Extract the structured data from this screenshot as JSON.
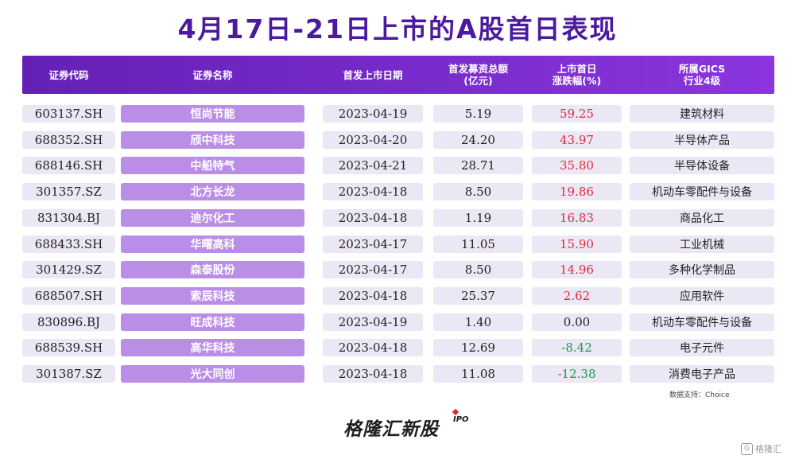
{
  "title": "4月17日-21日上市的A股首日表现",
  "headers": [
    "证券代码",
    "证券名称",
    "首发上市日期",
    "首发募资总额\n(亿元)",
    "上市首日\n涨跌幅(%)",
    "所属GICS\n行业4级"
  ],
  "rows": [
    {
      "code": "603137.SH",
      "name": "恒尚节能",
      "date": "2023-04-19",
      "amount": "5.19",
      "change": "59.25",
      "industry": "建筑材料"
    },
    {
      "code": "688352.SH",
      "name": "颀中科技",
      "date": "2023-04-20",
      "amount": "24.20",
      "change": "43.97",
      "industry": "半导体产品"
    },
    {
      "code": "688146.SH",
      "name": "中船特气",
      "date": "2023-04-21",
      "amount": "28.71",
      "change": "35.80",
      "industry": "半导体设备"
    },
    {
      "code": "301357.SZ",
      "name": "北方长龙",
      "date": "2023-04-18",
      "amount": "8.50",
      "change": "19.86",
      "industry": "机动车零配件与设备"
    },
    {
      "code": "831304.BJ",
      "name": "迪尔化工",
      "date": "2023-04-18",
      "amount": "1.19",
      "change": "16.83",
      "industry": "商品化工"
    },
    {
      "code": "688433.SH",
      "name": "华曙高科",
      "date": "2023-04-17",
      "amount": "11.05",
      "change": "15.90",
      "industry": "工业机械"
    },
    {
      "code": "301429.SZ",
      "name": "森泰股份",
      "date": "2023-04-17",
      "amount": "8.50",
      "change": "14.96",
      "industry": "多种化学制品"
    },
    {
      "code": "688507.SH",
      "name": "索辰科技",
      "date": "2023-04-18",
      "amount": "25.37",
      "change": "2.62",
      "industry": "应用软件"
    },
    {
      "code": "830896.BJ",
      "name": "旺成科技",
      "date": "2023-04-19",
      "amount": "1.40",
      "change": "0.00",
      "industry": "机动车零配件与设备"
    },
    {
      "code": "688539.SH",
      "name": "高华科技",
      "date": "2023-04-18",
      "amount": "12.69",
      "change": "-8.42",
      "industry": "电子元件"
    },
    {
      "code": "301387.SZ",
      "name": "光大同创",
      "date": "2023-04-18",
      "amount": "11.08",
      "change": "-12.38",
      "industry": "消费电子产品"
    }
  ],
  "source": "数据支持：Choice",
  "logo": "格隆汇新股",
  "logo_suffix": "IPO",
  "watermark": "格隆汇",
  "colors": {
    "title": "#4b1a9e",
    "header": "#7a2fd0",
    "name_cell": "#ba8ee6",
    "cell_bg": "#ece7f4",
    "positive": "#e2293b",
    "negative": "#1e9a4e"
  }
}
